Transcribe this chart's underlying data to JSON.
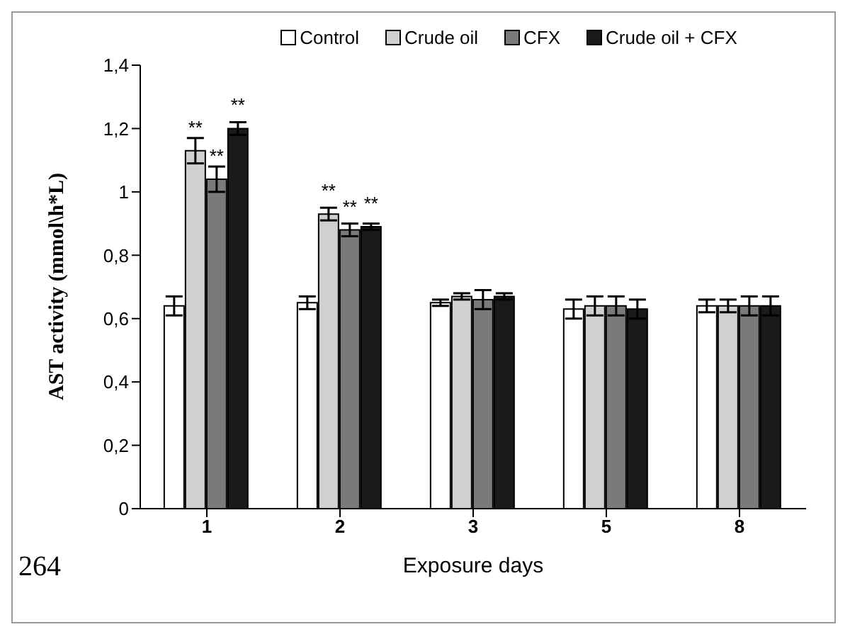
{
  "chart_data": {
    "type": "bar",
    "xlabel": "Exposure days",
    "ylabel": "AST activity (mmol\\h*L)",
    "categories": [
      "1",
      "2",
      "3",
      "5",
      "8"
    ],
    "series": [
      {
        "name": "Control",
        "color": "#ffffff",
        "values": [
          0.64,
          0.65,
          0.65,
          0.63,
          0.64
        ],
        "errors": [
          0.03,
          0.02,
          0.01,
          0.03,
          0.02
        ]
      },
      {
        "name": "Crude oil",
        "color": "#d0d0d0",
        "values": [
          1.13,
          0.93,
          0.67,
          0.64,
          0.64
        ],
        "errors": [
          0.04,
          0.02,
          0.01,
          0.03,
          0.02
        ],
        "value_labels": [
          "**",
          "**",
          null,
          null,
          null
        ]
      },
      {
        "name": "CFX",
        "color": "#7a7a7a",
        "values": [
          1.04,
          0.88,
          0.66,
          0.64,
          0.64
        ],
        "errors": [
          0.04,
          0.02,
          0.03,
          0.03,
          0.03
        ],
        "value_labels": [
          "**",
          "**",
          null,
          null,
          null
        ]
      },
      {
        "name": "Crude oil + CFX",
        "color": "#1a1a1a",
        "values": [
          1.2,
          0.89,
          0.67,
          0.63,
          0.64
        ],
        "errors": [
          0.02,
          0.01,
          0.01,
          0.03,
          0.03
        ],
        "value_labels": [
          "**",
          "**",
          null,
          null,
          null
        ]
      }
    ],
    "ylim": [
      0,
      1.4
    ],
    "yticks": [
      0,
      {
        "value": 0.2,
        "label": "0,2"
      },
      {
        "value": 0.4,
        "label": "0,4"
      },
      {
        "value": 0.6,
        "label": "0,6"
      },
      {
        "value": 0.8,
        "label": "0,8"
      },
      1,
      {
        "value": 1.2,
        "label": "1,2"
      },
      {
        "value": 1.4,
        "label": "1,4"
      }
    ],
    "grid": false,
    "legend": "top",
    "annotations": [
      "264"
    ]
  }
}
